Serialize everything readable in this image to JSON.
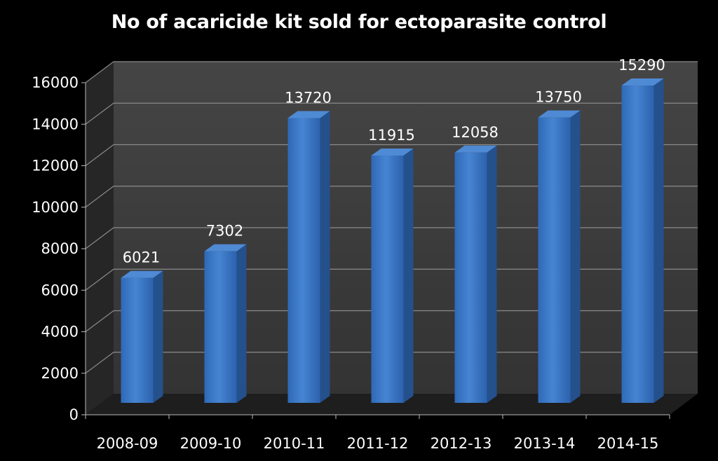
{
  "chart_data": {
    "type": "bar",
    "title": "No of acaricide kit sold for ectoparasite control",
    "categories": [
      "2008-09",
      "2009-10",
      "2010-11",
      "2011-12",
      "2012-13",
      "2013-14",
      "2014-15"
    ],
    "values": [
      6021,
      7302,
      13720,
      11915,
      12058,
      13750,
      15290
    ],
    "yticks": [
      0,
      2000,
      4000,
      6000,
      8000,
      10000,
      12000,
      14000,
      16000
    ],
    "ylim": [
      0,
      16000
    ],
    "xlabel": "",
    "ylabel": "",
    "grid": true,
    "legend": "none"
  },
  "colors": {
    "background": "#000000",
    "bar_front": "#3a78c8",
    "bar_side": "#24508c",
    "bar_top": "#4f8ad4",
    "wall": "#3b3b3b",
    "side_wall": "#262626",
    "floor": "#1e1e1e",
    "gridline": "#8a8a8a",
    "text": "#ffffff"
  }
}
